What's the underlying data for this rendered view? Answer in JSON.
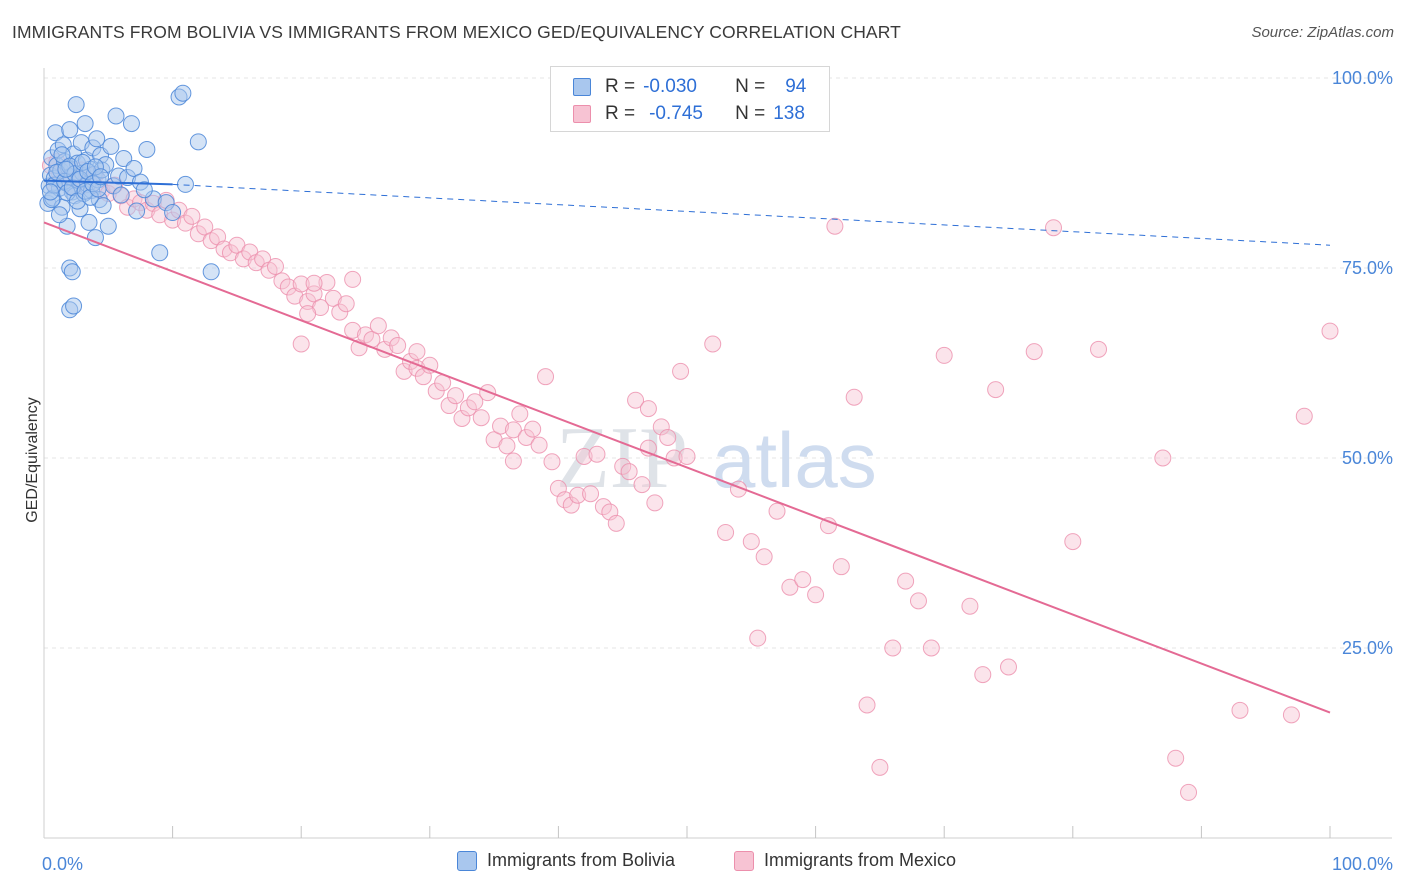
{
  "header": {
    "title": "IMMIGRANTS FROM BOLIVIA VS IMMIGRANTS FROM MEXICO GED/EQUIVALENCY CORRELATION CHART",
    "source": "Source: ZipAtlas.com"
  },
  "watermark": {
    "zip": "ZIP",
    "atlas": "atlas"
  },
  "colors": {
    "bolivia_fill": "#a9c7ee",
    "bolivia_stroke": "#4a86d8",
    "bolivia_line": "#2e6fd6",
    "mexico_fill": "#f7c3d3",
    "mexico_stroke": "#ec8fac",
    "mexico_line": "#e46a94",
    "tick_label": "#4a86d8",
    "grid": "#e4e4e4"
  },
  "stats_legend": {
    "bolivia": {
      "r_label": "R =",
      "r_value": "-0.030",
      "n_label": "N =",
      "n_value": "94"
    },
    "mexico": {
      "r_label": "R =",
      "r_value": "-0.745",
      "n_label": "N =",
      "n_value": "138"
    }
  },
  "chart_data": {
    "type": "scatter",
    "title": "IMMIGRANTS FROM BOLIVIA VS IMMIGRANTS FROM MEXICO GED/EQUIVALENCY CORRELATION CHART",
    "xlabel": "",
    "ylabel": "GED/Equivalency",
    "xlim": [
      0,
      100
    ],
    "ylim": [
      0,
      100
    ],
    "x_tick_labels": [
      "0.0%",
      "100.0%"
    ],
    "y_tick_labels": [
      "100.0%",
      "75.0%",
      "50.0%",
      "25.0%"
    ],
    "y_ticks": [
      100,
      75,
      50,
      25
    ],
    "grid": true,
    "legend_placement": "bottom-center",
    "series": [
      {
        "name": "Immigrants from Bolivia",
        "r": -0.03,
        "n": 94,
        "trend": {
          "x": [
            0,
            10,
            100
          ],
          "y": [
            86.5,
            86.0,
            78.0
          ],
          "solid_until_x": 10
        },
        "points": [
          [
            0.3,
            83.5
          ],
          [
            0.4,
            85.8
          ],
          [
            0.5,
            87.2
          ],
          [
            0.6,
            89.5
          ],
          [
            0.7,
            84.2
          ],
          [
            0.8,
            86.8
          ],
          [
            0.9,
            92.8
          ],
          [
            1.0,
            88.5
          ],
          [
            1.1,
            90.5
          ],
          [
            1.2,
            85.5
          ],
          [
            1.3,
            87.8
          ],
          [
            1.4,
            83.0
          ],
          [
            1.5,
            91.2
          ],
          [
            1.6,
            89.0
          ],
          [
            1.7,
            86.2
          ],
          [
            1.8,
            80.5
          ],
          [
            1.9,
            88.2
          ],
          [
            2.0,
            93.2
          ],
          [
            2.1,
            87.0
          ],
          [
            2.2,
            85.0
          ],
          [
            2.3,
            90.0
          ],
          [
            2.4,
            84.5
          ],
          [
            2.5,
            96.5
          ],
          [
            2.6,
            88.8
          ],
          [
            2.7,
            86.5
          ],
          [
            2.8,
            82.8
          ],
          [
            2.9,
            91.5
          ],
          [
            3.0,
            87.5
          ],
          [
            3.1,
            84.8
          ],
          [
            3.2,
            94.0
          ],
          [
            3.3,
            89.2
          ],
          [
            3.4,
            86.0
          ],
          [
            3.5,
            81.0
          ],
          [
            3.6,
            88.0
          ],
          [
            3.7,
            85.2
          ],
          [
            3.8,
            90.8
          ],
          [
            3.9,
            87.3
          ],
          [
            4.0,
            79.0
          ],
          [
            4.1,
            92.0
          ],
          [
            4.2,
            86.6
          ],
          [
            4.3,
            84.0
          ],
          [
            4.4,
            89.8
          ],
          [
            4.5,
            87.9
          ],
          [
            4.6,
            83.2
          ],
          [
            4.8,
            88.6
          ],
          [
            5.0,
            80.5
          ],
          [
            5.2,
            91.0
          ],
          [
            5.4,
            85.8
          ],
          [
            5.6,
            95.0
          ],
          [
            5.8,
            87.1
          ],
          [
            6.0,
            84.6
          ],
          [
            6.2,
            89.4
          ],
          [
            6.5,
            86.9
          ],
          [
            6.8,
            94.0
          ],
          [
            7.0,
            88.1
          ],
          [
            7.2,
            82.5
          ],
          [
            7.5,
            86.3
          ],
          [
            8.0,
            90.6
          ],
          [
            8.5,
            84.1
          ],
          [
            9.0,
            77.0
          ],
          [
            9.5,
            83.6
          ],
          [
            10.0,
            82.3
          ],
          [
            10.5,
            97.5
          ],
          [
            11.0,
            86.0
          ],
          [
            12.0,
            91.6
          ],
          [
            13.0,
            74.5
          ],
          [
            2.0,
            75.0
          ],
          [
            2.2,
            74.5
          ],
          [
            2.0,
            69.5
          ],
          [
            2.3,
            70.0
          ],
          [
            0.6,
            84.0
          ],
          [
            0.8,
            85.9
          ],
          [
            1.0,
            87.6
          ],
          [
            1.2,
            82.0
          ],
          [
            1.4,
            89.9
          ],
          [
            1.6,
            86.4
          ],
          [
            1.8,
            84.9
          ],
          [
            2.0,
            88.4
          ],
          [
            2.2,
            85.6
          ],
          [
            2.4,
            87.4
          ],
          [
            2.6,
            83.8
          ],
          [
            2.8,
            86.7
          ],
          [
            3.0,
            88.9
          ],
          [
            3.2,
            85.1
          ],
          [
            3.4,
            87.7
          ],
          [
            3.6,
            84.3
          ],
          [
            3.8,
            86.1
          ],
          [
            4.0,
            88.3
          ],
          [
            4.2,
            85.4
          ],
          [
            4.4,
            87.0
          ],
          [
            0.5,
            85.0
          ],
          [
            10.8,
            98.0
          ],
          [
            1.7,
            88.0
          ],
          [
            7.8,
            85.3
          ]
        ]
      },
      {
        "name": "Immigrants from Mexico",
        "r": -0.745,
        "n": 138,
        "trend": {
          "x": [
            0,
            100
          ],
          "y": [
            81.0,
            16.5
          ]
        },
        "points": [
          [
            0.5,
            88.5
          ],
          [
            0.8,
            86.0
          ],
          [
            1.0,
            89.0
          ],
          [
            1.2,
            87.5
          ],
          [
            1.5,
            86.5
          ],
          [
            1.8,
            88.2
          ],
          [
            2.0,
            87.0
          ],
          [
            2.3,
            85.6
          ],
          [
            2.6,
            86.8
          ],
          [
            2.9,
            87.9
          ],
          [
            3.2,
            85.9
          ],
          [
            3.5,
            86.3
          ],
          [
            4.0,
            87.2
          ],
          [
            4.5,
            85.2
          ],
          [
            5.0,
            84.8
          ],
          [
            5.5,
            85.9
          ],
          [
            6.0,
            84.5
          ],
          [
            6.5,
            83.0
          ],
          [
            7.0,
            84.1
          ],
          [
            7.5,
            83.6
          ],
          [
            8.0,
            82.6
          ],
          [
            8.5,
            83.5
          ],
          [
            9.0,
            82.0
          ],
          [
            9.5,
            83.9
          ],
          [
            10.0,
            81.3
          ],
          [
            10.5,
            82.6
          ],
          [
            11.0,
            80.9
          ],
          [
            11.5,
            81.8
          ],
          [
            12.0,
            79.5
          ],
          [
            12.5,
            80.4
          ],
          [
            13.0,
            78.6
          ],
          [
            13.5,
            79.1
          ],
          [
            14.0,
            77.5
          ],
          [
            14.5,
            77.0
          ],
          [
            15.0,
            78.0
          ],
          [
            15.5,
            76.2
          ],
          [
            16.0,
            77.1
          ],
          [
            16.5,
            75.7
          ],
          [
            17.0,
            76.2
          ],
          [
            17.5,
            74.7
          ],
          [
            18.0,
            75.2
          ],
          [
            18.5,
            73.3
          ],
          [
            19.0,
            72.5
          ],
          [
            19.5,
            71.3
          ],
          [
            20.0,
            72.9
          ],
          [
            20.5,
            70.6
          ],
          [
            21.0,
            71.6
          ],
          [
            21.5,
            69.8
          ],
          [
            22.0,
            73.1
          ],
          [
            22.5,
            71.0
          ],
          [
            23.0,
            69.2
          ],
          [
            23.5,
            70.3
          ],
          [
            24.0,
            66.8
          ],
          [
            24.5,
            64.5
          ],
          [
            25.0,
            66.2
          ],
          [
            25.5,
            65.6
          ],
          [
            26.0,
            67.4
          ],
          [
            26.5,
            64.3
          ],
          [
            27.0,
            65.8
          ],
          [
            27.5,
            64.8
          ],
          [
            28.0,
            61.4
          ],
          [
            28.5,
            62.7
          ],
          [
            29.0,
            61.8
          ],
          [
            29.5,
            60.7
          ],
          [
            30.0,
            62.2
          ],
          [
            30.5,
            58.8
          ],
          [
            31.0,
            59.9
          ],
          [
            31.5,
            56.9
          ],
          [
            32.0,
            58.2
          ],
          [
            32.5,
            55.2
          ],
          [
            33.0,
            56.6
          ],
          [
            33.5,
            57.4
          ],
          [
            34.0,
            55.3
          ],
          [
            34.5,
            58.6
          ],
          [
            35.0,
            52.4
          ],
          [
            35.5,
            54.2
          ],
          [
            36.0,
            51.6
          ],
          [
            36.5,
            53.7
          ],
          [
            37.0,
            55.8
          ],
          [
            37.5,
            52.7
          ],
          [
            38.0,
            53.8
          ],
          [
            38.5,
            51.7
          ],
          [
            39.0,
            60.7
          ],
          [
            39.5,
            49.5
          ],
          [
            40.0,
            46.0
          ],
          [
            40.5,
            44.5
          ],
          [
            41.0,
            43.8
          ],
          [
            41.5,
            45.1
          ],
          [
            42.0,
            50.2
          ],
          [
            42.5,
            45.3
          ],
          [
            43.0,
            50.5
          ],
          [
            43.5,
            43.6
          ],
          [
            44.0,
            42.9
          ],
          [
            44.5,
            41.4
          ],
          [
            45.0,
            48.9
          ],
          [
            45.5,
            48.2
          ],
          [
            46.0,
            57.6
          ],
          [
            47.0,
            51.3
          ],
          [
            47.5,
            44.1
          ],
          [
            48.0,
            54.1
          ],
          [
            48.5,
            52.7
          ],
          [
            49.0,
            50.0
          ],
          [
            49.5,
            61.4
          ],
          [
            50.0,
            50.2
          ],
          [
            52.0,
            65.0
          ],
          [
            53.0,
            40.2
          ],
          [
            54.0,
            45.9
          ],
          [
            55.0,
            39.0
          ],
          [
            56.0,
            37.0
          ],
          [
            57.0,
            43.0
          ],
          [
            58.0,
            33.0
          ],
          [
            59.0,
            34.0
          ],
          [
            60.0,
            32.0
          ],
          [
            61.0,
            41.1
          ],
          [
            62.0,
            35.7
          ],
          [
            63.0,
            58.0
          ],
          [
            64.0,
            17.5
          ],
          [
            65.0,
            9.3
          ],
          [
            66.0,
            25.0
          ],
          [
            67.0,
            33.8
          ],
          [
            68.0,
            31.2
          ],
          [
            69.0,
            25.0
          ],
          [
            70.0,
            63.5
          ],
          [
            72.0,
            30.5
          ],
          [
            74.0,
            59.0
          ],
          [
            75.0,
            22.5
          ],
          [
            77.0,
            64.0
          ],
          [
            80.0,
            39.0
          ],
          [
            82.0,
            64.3
          ],
          [
            87.0,
            50.0
          ],
          [
            88.0,
            10.5
          ],
          [
            89.0,
            6.0
          ],
          [
            93.0,
            16.8
          ],
          [
            97.0,
            16.2
          ],
          [
            98.0,
            55.5
          ],
          [
            100.0,
            66.7
          ],
          [
            78.5,
            80.3
          ],
          [
            61.5,
            80.5
          ],
          [
            73.0,
            21.5
          ],
          [
            46.5,
            46.5
          ],
          [
            55.5,
            26.3
          ],
          [
            36.5,
            49.6
          ],
          [
            29.0,
            64.0
          ],
          [
            47.0,
            56.5
          ],
          [
            24.0,
            73.5
          ],
          [
            21.0,
            73.0
          ],
          [
            20.5,
            69.0
          ],
          [
            20.0,
            65.0
          ]
        ]
      }
    ]
  },
  "bottom_legend": [
    {
      "label": "Immigrants from Bolivia"
    },
    {
      "label": "Immigrants from Mexico"
    }
  ]
}
